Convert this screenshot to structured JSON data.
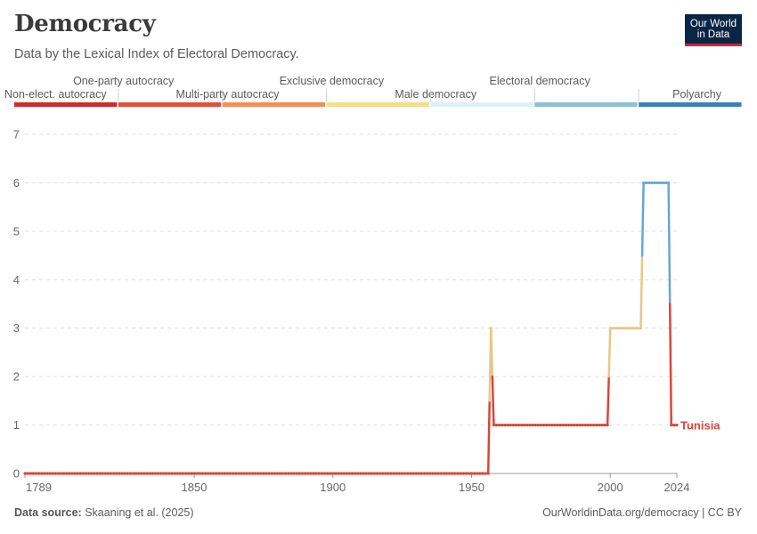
{
  "header": {
    "title": "Democracy",
    "subtitle": "Data by the Lexical Index of Electoral Democracy."
  },
  "logo": {
    "line1": "Our World",
    "line2": "in Data",
    "bg_color": "#0b2545",
    "accent_color": "#c5283d"
  },
  "footer": {
    "source_label": "Data source:",
    "source_text": "Skaaning et al. (2025)",
    "url_license": "OurWorldinData.org/democracy | CC BY"
  },
  "chart_data": {
    "type": "line",
    "x_tick_labels": [
      "1789",
      "1850",
      "1900",
      "1950",
      "2000",
      "2024"
    ],
    "x_ticks": [
      1789,
      1850,
      1900,
      1950,
      2000,
      2024
    ],
    "xlim": [
      1789,
      2024
    ],
    "ylim": [
      0,
      7
    ],
    "y_ticks": [
      0,
      1,
      2,
      3,
      4,
      5,
      6,
      7
    ],
    "grid": "horizontal dashed",
    "legend": {
      "placement": "top",
      "categories": [
        {
          "label": "Non-elect. autocracy",
          "color": "#d12a2a"
        },
        {
          "label": "One-party autocracy",
          "color": "#e0513e"
        },
        {
          "label": "Multi-party autocracy",
          "color": "#f0905a"
        },
        {
          "label": "Exclusive democracy",
          "color": "#f7dc8a"
        },
        {
          "label": "Male democracy",
          "color": "#dff0f8"
        },
        {
          "label": "Electoral democracy",
          "color": "#8dbfd7"
        },
        {
          "label": "Polyarchy",
          "color": "#3b7fb8"
        }
      ]
    },
    "series": [
      {
        "name": "Tunisia",
        "color": "#d9473a",
        "points": [
          [
            1789,
            0
          ],
          [
            1956,
            0
          ],
          [
            1957,
            3
          ],
          [
            1958,
            1
          ],
          [
            1999,
            1
          ],
          [
            2000,
            3
          ],
          [
            2011,
            3
          ],
          [
            2012,
            6
          ],
          [
            2021,
            6
          ],
          [
            2022,
            1
          ],
          [
            2024,
            1
          ]
        ]
      }
    ]
  }
}
